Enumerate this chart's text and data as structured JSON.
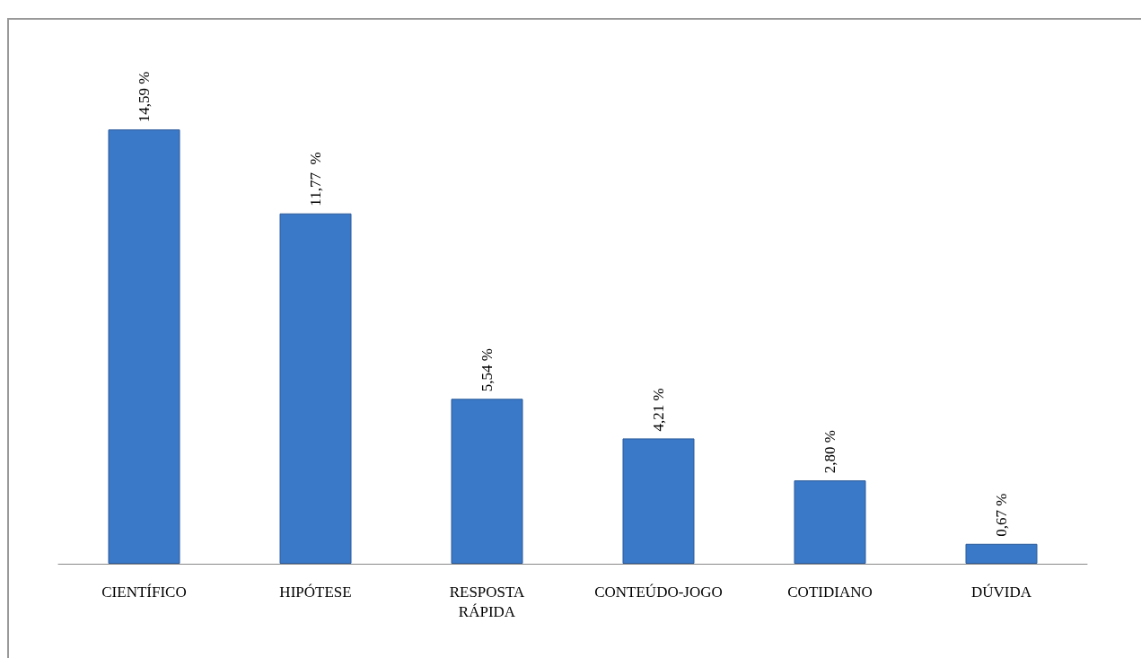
{
  "chart_data": {
    "type": "bar",
    "categories": [
      "CIENTÍFICO",
      "HIPÓTESE",
      "RESPOSTA\nRÁPIDA",
      "CONTEÚDO-JOGO",
      "COTIDIANO",
      "DÚVIDA"
    ],
    "values": [
      14.59,
      11.77,
      5.54,
      4.21,
      2.8,
      0.67
    ],
    "value_labels": [
      "14,59 %",
      "11,77  %",
      "5,54 %",
      "4,21 %",
      "2,80 %",
      "0,67 %"
    ],
    "color": "#3a78c8"
  }
}
